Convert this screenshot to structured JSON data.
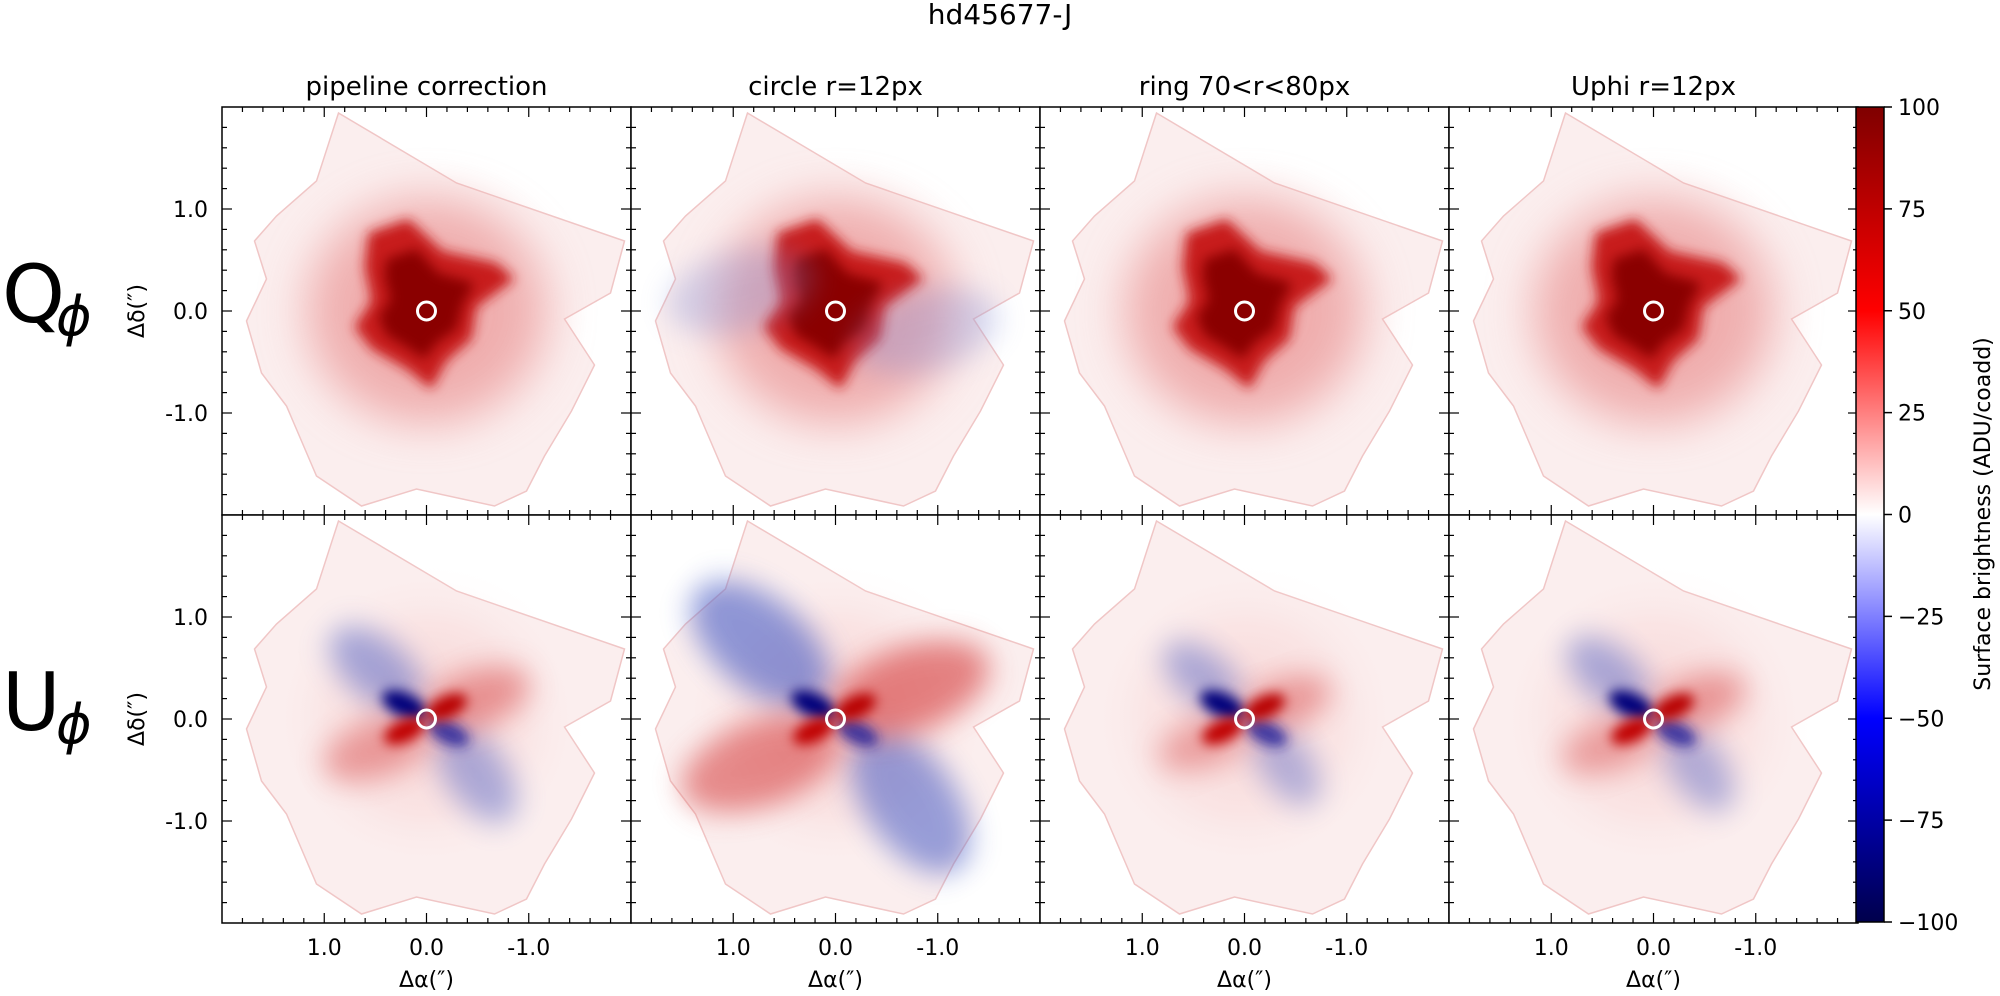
{
  "chart_data": {
    "type": "heatmap",
    "title": "hd45677-J",
    "column_titles": [
      "pipeline correction",
      "circle r=12px",
      "ring 70<r<80px",
      "Uphi r=12px"
    ],
    "row_labels": [
      {
        "main": "Q",
        "sub": "ϕ"
      },
      {
        "main": "U",
        "sub": "ϕ"
      }
    ],
    "xlabel": "Δα(″)",
    "ylabel": "Δδ(″)",
    "x_ticks": [
      1.0,
      0.0,
      -1.0
    ],
    "x_tick_labels": [
      "1.0",
      "0.0",
      "-1.0"
    ],
    "y_ticks": [
      1.0,
      0.0,
      -1.0
    ],
    "y_tick_labels": [
      "1.0",
      "0.0",
      "-1.0"
    ],
    "xlim": [
      2.0,
      -2.0
    ],
    "ylim": [
      -2.0,
      2.0
    ],
    "colorbar": {
      "label": "Surface brightness (ADU/coadd)",
      "range": [
        -100,
        100
      ],
      "ticks": [
        100,
        75,
        50,
        25,
        0,
        -25,
        -50,
        -75,
        -100
      ],
      "tick_labels": [
        "100",
        "75",
        "50",
        "25",
        "0",
        "−25",
        "−50",
        "−75",
        "−100"
      ],
      "colormap": "seismic",
      "colors": {
        "negative": "#00004c",
        "zero": "#ffffff",
        "positive": "#7f0000"
      }
    },
    "panels": [
      {
        "row": 0,
        "col": 0,
        "pattern": "Qphi",
        "lobe_level": 0,
        "halo_level": 0.25
      },
      {
        "row": 0,
        "col": 1,
        "pattern": "Qphi",
        "lobe_level": 0.3,
        "halo_level": 0.3
      },
      {
        "row": 0,
        "col": 2,
        "pattern": "Qphi",
        "lobe_level": 0,
        "halo_level": 0.25
      },
      {
        "row": 0,
        "col": 3,
        "pattern": "Qphi",
        "lobe_level": 0,
        "halo_level": 0.25
      },
      {
        "row": 1,
        "col": 0,
        "pattern": "Uphi",
        "lobe_level": 0.55,
        "halo_level": 0.12
      },
      {
        "row": 1,
        "col": 1,
        "pattern": "Uphi",
        "lobe_level": 1.0,
        "halo_level": 0.15
      },
      {
        "row": 1,
        "col": 2,
        "pattern": "Uphi",
        "lobe_level": 0.4,
        "halo_level": 0.08
      },
      {
        "row": 1,
        "col": 3,
        "pattern": "Uphi",
        "lobe_level": 0.45,
        "halo_level": 0.1
      }
    ]
  }
}
